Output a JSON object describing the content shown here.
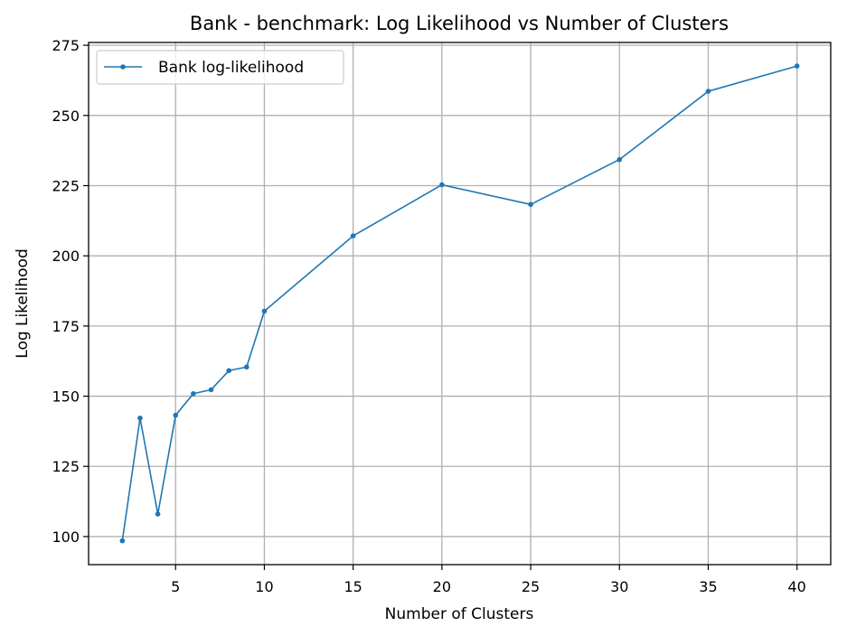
{
  "chart_data": {
    "type": "line",
    "title": "Bank - benchmark: Log Likelihood vs Number of Clusters",
    "xlabel": "Number of Clusters",
    "ylabel": "Log Likelihood",
    "xlim": [
      0.1,
      41.9
    ],
    "ylim": [
      90,
      276
    ],
    "xticks": [
      5,
      10,
      15,
      20,
      25,
      30,
      35,
      40
    ],
    "yticks": [
      100,
      125,
      150,
      175,
      200,
      225,
      250,
      275
    ],
    "grid": true,
    "legend": "top-left",
    "series": [
      {
        "name": "Bank log-likelihood",
        "color": "#1f77b4",
        "marker": "circle",
        "x": [
          2,
          3,
          4,
          5,
          6,
          7,
          8,
          9,
          10,
          15,
          20,
          25,
          30,
          35,
          40
        ],
        "y": [
          98.5,
          142.2,
          108.0,
          143.2,
          150.9,
          152.3,
          159.1,
          160.4,
          180.3,
          207.1,
          225.3,
          218.3,
          234.3,
          258.6,
          267.6
        ]
      }
    ]
  }
}
